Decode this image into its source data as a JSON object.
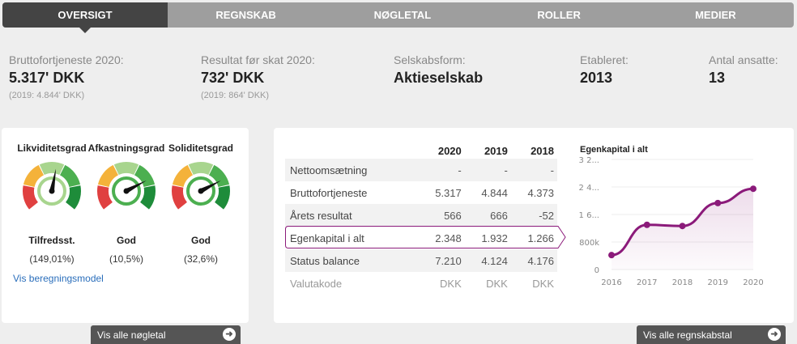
{
  "nav": {
    "tabs": [
      {
        "label": "OVERSIGT",
        "active": true
      },
      {
        "label": "REGNSKAB"
      },
      {
        "label": "NØGLETAL"
      },
      {
        "label": "ROLLER"
      },
      {
        "label": "MEDIER"
      }
    ]
  },
  "stats": [
    {
      "label": "Bruttofortjeneste 2020:",
      "value": "5.317' DKK",
      "sub": "(2019: 4.844' DKK)"
    },
    {
      "label": "Resultat før skat 2020:",
      "value": "732' DKK",
      "sub": "(2019: 864' DKK)"
    },
    {
      "label": "Selskabsform:",
      "value": "Aktieselskab"
    },
    {
      "label": "Etableret:",
      "value": "2013"
    },
    {
      "label": "Antal ansatte:",
      "value": "13"
    }
  ],
  "gauges": [
    {
      "title": "Likviditetsgrad",
      "status": "Tilfredsst.",
      "value": "(149,01%)",
      "needle": 0.54
    },
    {
      "title": "Afkastningsgrad",
      "status": "God",
      "value": "(10,5%)",
      "needle": 0.74
    },
    {
      "title": "Soliditetsgrad",
      "status": "God",
      "value": "(32,6%)",
      "needle": 0.74
    }
  ],
  "gauge_colors": [
    "#e04040",
    "#f4b23a",
    "#a8d58e",
    "#4caf50",
    "#1e8c3a"
  ],
  "calc_link": "Vis beregningsmodel",
  "buttons": {
    "key_figures": "Vis alle nøgletal",
    "accounts": "Vis alle regnskabstal"
  },
  "table": {
    "headers": [
      "",
      "2020",
      "2019",
      "2018"
    ],
    "rows": [
      [
        "Nettoomsætning",
        "-",
        "-",
        "-"
      ],
      [
        "Bruttofortjeneste",
        "5.317",
        "4.844",
        "4.373"
      ],
      [
        "Årets resultat",
        "566",
        "666",
        "-52"
      ],
      [
        "Egenkapital i alt",
        "2.348",
        "1.932",
        "1.266"
      ],
      [
        "Status balance",
        "7.210",
        "4.124",
        "4.176"
      ],
      [
        "Valutakode",
        "DKK",
        "DKK",
        "DKK"
      ]
    ]
  },
  "chart_data": {
    "type": "line",
    "title": "Egenkapital i alt",
    "categories": [
      "2016",
      "2017",
      "2018",
      "2019",
      "2020"
    ],
    "values": [
      420000,
      1300000,
      1266000,
      1932000,
      2348000
    ],
    "yticks": [
      "0",
      "800k",
      "1 6...",
      "2 4...",
      "3 2..."
    ],
    "ylim": [
      0,
      3200000
    ],
    "grid": true,
    "color": "#8b1a7a"
  }
}
